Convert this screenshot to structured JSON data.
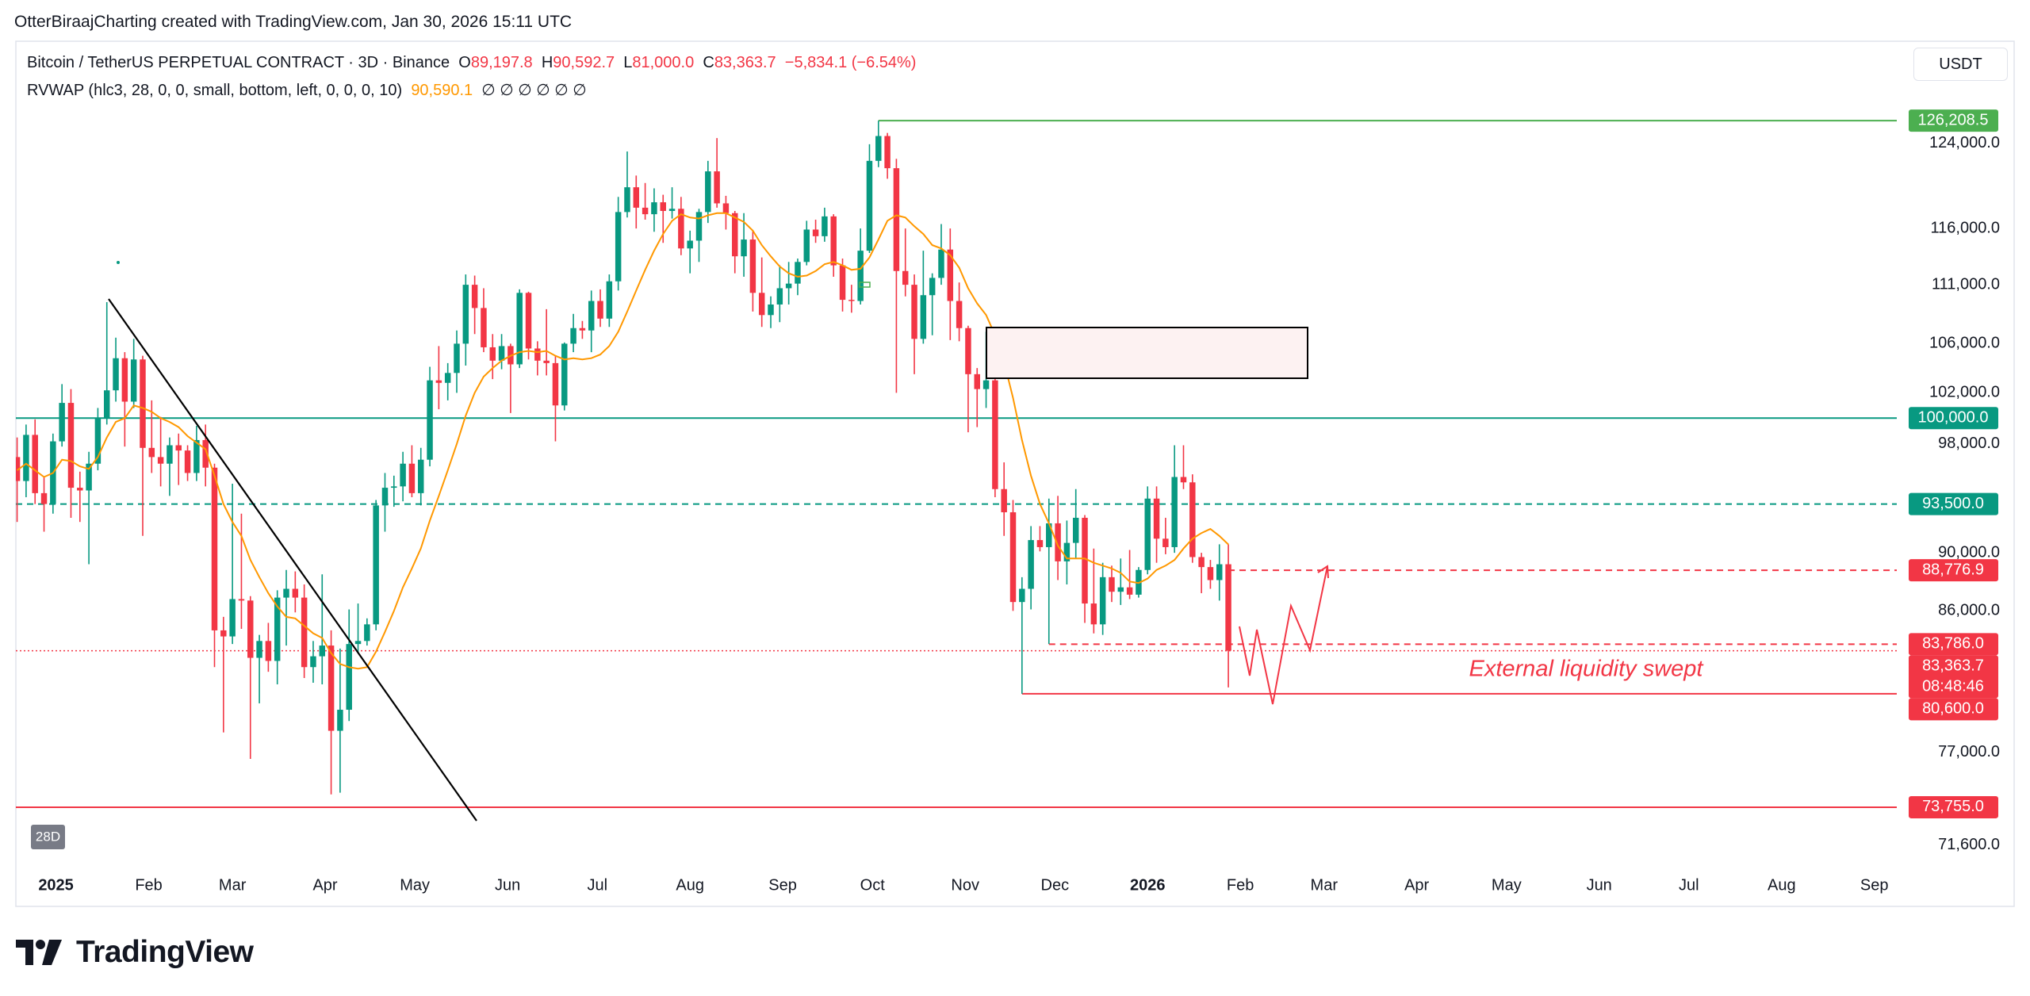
{
  "header": "OtterBiraajCharting created with TradingView.com, Jan 30, 2026 15:11 UTC",
  "chart_data": {
    "type": "candlestick",
    "legend": {
      "symbol": "Bitcoin / TetherUS PERPETUAL CONTRACT · 3D · Binance",
      "items": [
        {
          "key": "O",
          "value": "89,197.8"
        },
        {
          "key": "H",
          "value": "90,592.7"
        },
        {
          "key": "L",
          "value": "81,000.0"
        },
        {
          "key": "C",
          "value": "83,363.7"
        }
      ],
      "change": "−5,834.1 (−6.54%)"
    },
    "indicator": {
      "label": "RVWAP (hlc3, 28, 0, 0, small, bottom, left, 0, 0, 0, 10)",
      "value": "90,590.1",
      "extras": "∅ ∅ ∅ ∅ ∅ ∅"
    },
    "currency": "USDT",
    "interval_badge": "28D",
    "annotation": "External liquidity swept",
    "up_color": "#089981",
    "down_color": "#f23645",
    "log": true,
    "grid": false,
    "xlim": [
      -0.14,
      209.5
    ],
    "ylim": [
      70530,
      134300
    ],
    "xticks": [
      {
        "value": 4.33,
        "label": "2025"
      },
      {
        "value": 14.67,
        "label": "Feb"
      },
      {
        "value": 24,
        "label": "Mar"
      },
      {
        "value": 34.33,
        "label": "Apr"
      },
      {
        "value": 44.33,
        "label": "May"
      },
      {
        "value": 54.67,
        "label": "Jun"
      },
      {
        "value": 64.67,
        "label": "Jul"
      },
      {
        "value": 75,
        "label": "Aug"
      },
      {
        "value": 85.33,
        "label": "Sep"
      },
      {
        "value": 95.33,
        "label": "Oct"
      },
      {
        "value": 105.67,
        "label": "Nov"
      },
      {
        "value": 115.67,
        "label": "Dec"
      },
      {
        "value": 126,
        "label": "2026"
      },
      {
        "value": 136.33,
        "label": "Feb"
      },
      {
        "value": 145.67,
        "label": "Mar"
      },
      {
        "value": 156,
        "label": "Apr"
      },
      {
        "value": 166,
        "label": "May"
      },
      {
        "value": 176.33,
        "label": "Jun"
      },
      {
        "value": 186.33,
        "label": "Jul"
      },
      {
        "value": 196.67,
        "label": "Aug"
      },
      {
        "value": 207,
        "label": "Sep"
      }
    ],
    "yticks": [
      {
        "value": 124000,
        "label": "124,000.0"
      },
      {
        "value": 116000,
        "label": "116,000.0"
      },
      {
        "value": 111000,
        "label": "111,000.0"
      },
      {
        "value": 106000,
        "label": "106,000.0"
      },
      {
        "value": 102000,
        "label": "102,000.0"
      },
      {
        "value": 98000,
        "label": "98,000.0"
      },
      {
        "value": 90000,
        "label": "90,000.0"
      },
      {
        "value": 86000,
        "label": "86,000.0"
      },
      {
        "value": 77000,
        "label": "77,000.0"
      },
      {
        "value": 71600,
        "label": "71,600.0"
      }
    ],
    "candles": [
      [
        97000,
        98500,
        92200,
        95200
      ],
      [
        95200,
        99500,
        94000,
        98700
      ],
      [
        98700,
        99900,
        93500,
        94300
      ],
      [
        94300,
        95500,
        91500,
        93500
      ],
      [
        93500,
        98800,
        92800,
        98200
      ],
      [
        98200,
        102700,
        97800,
        101200
      ],
      [
        101200,
        102300,
        92500,
        94700
      ],
      [
        94700,
        95900,
        92200,
        94500
      ],
      [
        94500,
        97400,
        89200,
        96500
      ],
      [
        96500,
        100800,
        96000,
        100000
      ],
      [
        100000,
        109500,
        99500,
        102200
      ],
      [
        102200,
        106500,
        101300,
        104800
      ],
      [
        104800,
        105300,
        97800,
        101300
      ],
      [
        101300,
        106400,
        100800,
        104700
      ],
      [
        104700,
        105000,
        91200,
        97700
      ],
      [
        97700,
        101400,
        95800,
        97000
      ],
      [
        97000,
        100100,
        94800,
        96500
      ],
      [
        96500,
        98500,
        94100,
        97900
      ],
      [
        97900,
        98800,
        94900,
        97500
      ],
      [
        97500,
        97900,
        95200,
        95800
      ],
      [
        95800,
        99400,
        95200,
        98300
      ],
      [
        98300,
        99500,
        94800,
        96200
      ],
      [
        96200,
        96500,
        82300,
        84700
      ],
      [
        84700,
        85600,
        78200,
        84300
      ],
      [
        84300,
        95000,
        83800,
        86800
      ],
      [
        86800,
        92800,
        84800,
        86700
      ],
      [
        86700,
        87000,
        76600,
        82900
      ],
      [
        82900,
        84400,
        80000,
        84000
      ],
      [
        84000,
        85200,
        82000,
        82700
      ],
      [
        82700,
        87400,
        81200,
        86900
      ],
      [
        86900,
        88800,
        83700,
        87500
      ],
      [
        87500,
        88700,
        85900,
        86900
      ],
      [
        86900,
        87800,
        81600,
        82300
      ],
      [
        82300,
        84000,
        81300,
        83000
      ],
      [
        83000,
        88500,
        81200,
        83700
      ],
      [
        83700,
        84700,
        74500,
        78300
      ],
      [
        78300,
        83500,
        74600,
        79600
      ],
      [
        79600,
        86100,
        78900,
        83800
      ],
      [
        83800,
        86500,
        83200,
        84000
      ],
      [
        84000,
        85500,
        83700,
        85100
      ],
      [
        85100,
        93800,
        84700,
        93400
      ],
      [
        93400,
        95800,
        91500,
        94700
      ],
      [
        94700,
        95600,
        93300,
        94800
      ],
      [
        94800,
        97400,
        93700,
        96500
      ],
      [
        96500,
        97900,
        94000,
        94300
      ],
      [
        94300,
        97700,
        93400,
        96800
      ],
      [
        96800,
        104100,
        96300,
        103000
      ],
      [
        103000,
        105800,
        100700,
        102800
      ],
      [
        102800,
        104400,
        101400,
        103600
      ],
      [
        103600,
        107100,
        102000,
        106000
      ],
      [
        106000,
        111900,
        104200,
        111000
      ],
      [
        111000,
        111800,
        106800,
        109000
      ],
      [
        109000,
        110700,
        105300,
        105700
      ],
      [
        105700,
        106800,
        103100,
        104600
      ],
      [
        104600,
        106800,
        103900,
        105800
      ],
      [
        105800,
        106000,
        100400,
        104300
      ],
      [
        104300,
        110600,
        104000,
        110300
      ],
      [
        110300,
        110400,
        104700,
        105600
      ],
      [
        105600,
        106200,
        103400,
        104600
      ],
      [
        104600,
        108900,
        103400,
        104400
      ],
      [
        104400,
        105000,
        98200,
        101000
      ],
      [
        101000,
        106100,
        100600,
        106000
      ],
      [
        106000,
        108500,
        105300,
        107300
      ],
      [
        107300,
        107900,
        106400,
        107100
      ],
      [
        107100,
        110500,
        105300,
        109600
      ],
      [
        109600,
        110600,
        107400,
        108100
      ],
      [
        108100,
        111900,
        107400,
        111300
      ],
      [
        111300,
        118900,
        110500,
        117500
      ],
      [
        117500,
        123200,
        117000,
        119800
      ],
      [
        119800,
        120900,
        116000,
        117900
      ],
      [
        117900,
        120200,
        116800,
        117300
      ],
      [
        117300,
        119700,
        115700,
        118400
      ],
      [
        118400,
        119100,
        114700,
        117600
      ],
      [
        117600,
        119800,
        116900,
        117800
      ],
      [
        117800,
        118900,
        113600,
        114200
      ],
      [
        114200,
        115800,
        112000,
        114900
      ],
      [
        114900,
        117800,
        113000,
        117500
      ],
      [
        117500,
        122300,
        116500,
        121300
      ],
      [
        121300,
        124500,
        117900,
        118300
      ],
      [
        118300,
        119000,
        115900,
        117400
      ],
      [
        117400,
        117600,
        112000,
        113500
      ],
      [
        113500,
        117400,
        111700,
        115000
      ],
      [
        115000,
        115800,
        108700,
        110300
      ],
      [
        110300,
        113400,
        107400,
        108400
      ],
      [
        108400,
        110000,
        107300,
        109300
      ],
      [
        109300,
        112700,
        107800,
        110700
      ],
      [
        110700,
        113000,
        109300,
        111100
      ],
      [
        111100,
        113300,
        110100,
        113000
      ],
      [
        113000,
        116700,
        112700,
        115900
      ],
      [
        115900,
        116800,
        114700,
        115300
      ],
      [
        115300,
        117900,
        114800,
        117100
      ],
      [
        117100,
        117300,
        111700,
        112700
      ],
      [
        112700,
        113300,
        108700,
        109700
      ],
      [
        109700,
        111000,
        108600,
        109600
      ],
      [
        109600,
        116000,
        109300,
        114000
      ],
      [
        114000,
        123900,
        113800,
        122300
      ],
      [
        122300,
        126200,
        121700,
        124700
      ],
      [
        124700,
        125000,
        120600,
        121600
      ],
      [
        121600,
        122500,
        102000,
        112200
      ],
      [
        112200,
        116000,
        110000,
        111000
      ],
      [
        111000,
        111900,
        103500,
        106400
      ],
      [
        106400,
        114000,
        106000,
        110100
      ],
      [
        110100,
        112000,
        106700,
        111600
      ],
      [
        111600,
        116400,
        111000,
        114100
      ],
      [
        114100,
        116000,
        106300,
        109600
      ],
      [
        109600,
        111200,
        106200,
        107300
      ],
      [
        107300,
        107500,
        98900,
        103500
      ],
      [
        103500,
        104000,
        99300,
        102300
      ],
      [
        102300,
        107000,
        100800,
        103000
      ],
      [
        103000,
        105300,
        94000,
        94600
      ],
      [
        94600,
        96600,
        91200,
        92900
      ],
      [
        92900,
        93800,
        86000,
        86600
      ],
      [
        86600,
        88300,
        80600,
        87500
      ],
      [
        87500,
        91900,
        86100,
        90900
      ],
      [
        90900,
        91900,
        90100,
        90400
      ],
      [
        90400,
        93900,
        83800,
        92100
      ],
      [
        92100,
        94100,
        88100,
        89400
      ],
      [
        89400,
        92300,
        87800,
        90700
      ],
      [
        90700,
        94600,
        89600,
        92500
      ],
      [
        92500,
        92700,
        85200,
        86500
      ],
      [
        86500,
        90300,
        84500,
        85100
      ],
      [
        85100,
        89300,
        84400,
        88300
      ],
      [
        88300,
        89100,
        86600,
        87300
      ],
      [
        87300,
        89600,
        86400,
        87600
      ],
      [
        87600,
        90200,
        86800,
        87100
      ],
      [
        87100,
        89000,
        86900,
        88800
      ],
      [
        88800,
        94800,
        88500,
        93900
      ],
      [
        93900,
        94800,
        89300,
        91000
      ],
      [
        91000,
        92500,
        89900,
        90400
      ],
      [
        90400,
        97900,
        90000,
        95500
      ],
      [
        95500,
        97900,
        94600,
        95100
      ],
      [
        95100,
        95700,
        89300,
        89700
      ],
      [
        89700,
        90000,
        87200,
        89000
      ],
      [
        89000,
        89500,
        87500,
        88100
      ],
      [
        88100,
        90600,
        86700,
        89197.8
      ],
      [
        89197.8,
        90592.7,
        81000,
        83363.7
      ]
    ],
    "rvwap": {
      "color": "#ff9800",
      "values": [
        96000,
        96500,
        96000,
        95500,
        95800,
        96800,
        96700,
        96300,
        96100,
        97000,
        98500,
        99700,
        100000,
        101000,
        100800,
        100500,
        100000,
        99700,
        99300,
        98600,
        98100,
        97600,
        95600,
        93500,
        92200,
        91200,
        89500,
        88300,
        87200,
        86300,
        85600,
        85500,
        85000,
        84500,
        84200,
        83200,
        82500,
        82300,
        82200,
        82300,
        83300,
        84600,
        86000,
        87600,
        88900,
        90300,
        92300,
        94100,
        96000,
        98000,
        100200,
        102000,
        103300,
        104000,
        104600,
        105000,
        105300,
        105400,
        105300,
        105400,
        105000,
        104700,
        104800,
        104700,
        104800,
        105100,
        105800,
        107000,
        108700,
        110500,
        112300,
        114000,
        115500,
        116700,
        117300,
        117000,
        116900,
        117200,
        117400,
        117400,
        117000,
        116600,
        115800,
        114500,
        113500,
        112600,
        112000,
        111700,
        111800,
        112200,
        112800,
        113000,
        112700,
        112300,
        112400,
        113400,
        115000,
        116700,
        117200,
        117000,
        116200,
        115500,
        114500,
        114200,
        113600,
        112500,
        110700,
        109400,
        108400,
        106700,
        104500,
        101600,
        98300,
        95600,
        93500,
        92100,
        90500,
        89600,
        89600,
        89600,
        89300,
        89100,
        88900,
        88600,
        88000,
        87900,
        88200,
        88800,
        89100,
        89500,
        90300,
        91000,
        91400,
        91700,
        91200,
        90590.1
      ]
    },
    "levels": [
      {
        "value": 126208.5,
        "label": "126,208.5",
        "color": "#4caf50",
        "style": "solid",
        "from": 96
      },
      {
        "value": 100000,
        "label": "100,000.0",
        "color": "#089981",
        "style": "solid"
      },
      {
        "value": 93500,
        "label": "93,500.0",
        "color": "#089981",
        "style": "dashed"
      },
      {
        "value": 88776.9,
        "label": "88,776.9",
        "color": "#f23645",
        "style": "dashed",
        "from": 135
      },
      {
        "value": 83786,
        "label": "83,786.0",
        "color": "#f23645",
        "style": "dashed",
        "from": 115
      },
      {
        "value": 80600,
        "label": "80,600.0",
        "color": "#f23645",
        "style": "solid",
        "from": 112
      },
      {
        "value": 73755,
        "label": "73,755.0",
        "color": "#f23645",
        "style": "solid"
      }
    ],
    "last_price": {
      "label": "83,363.7",
      "countdown": "08:48:46"
    }
  },
  "footer": {
    "brand": "TradingView"
  }
}
